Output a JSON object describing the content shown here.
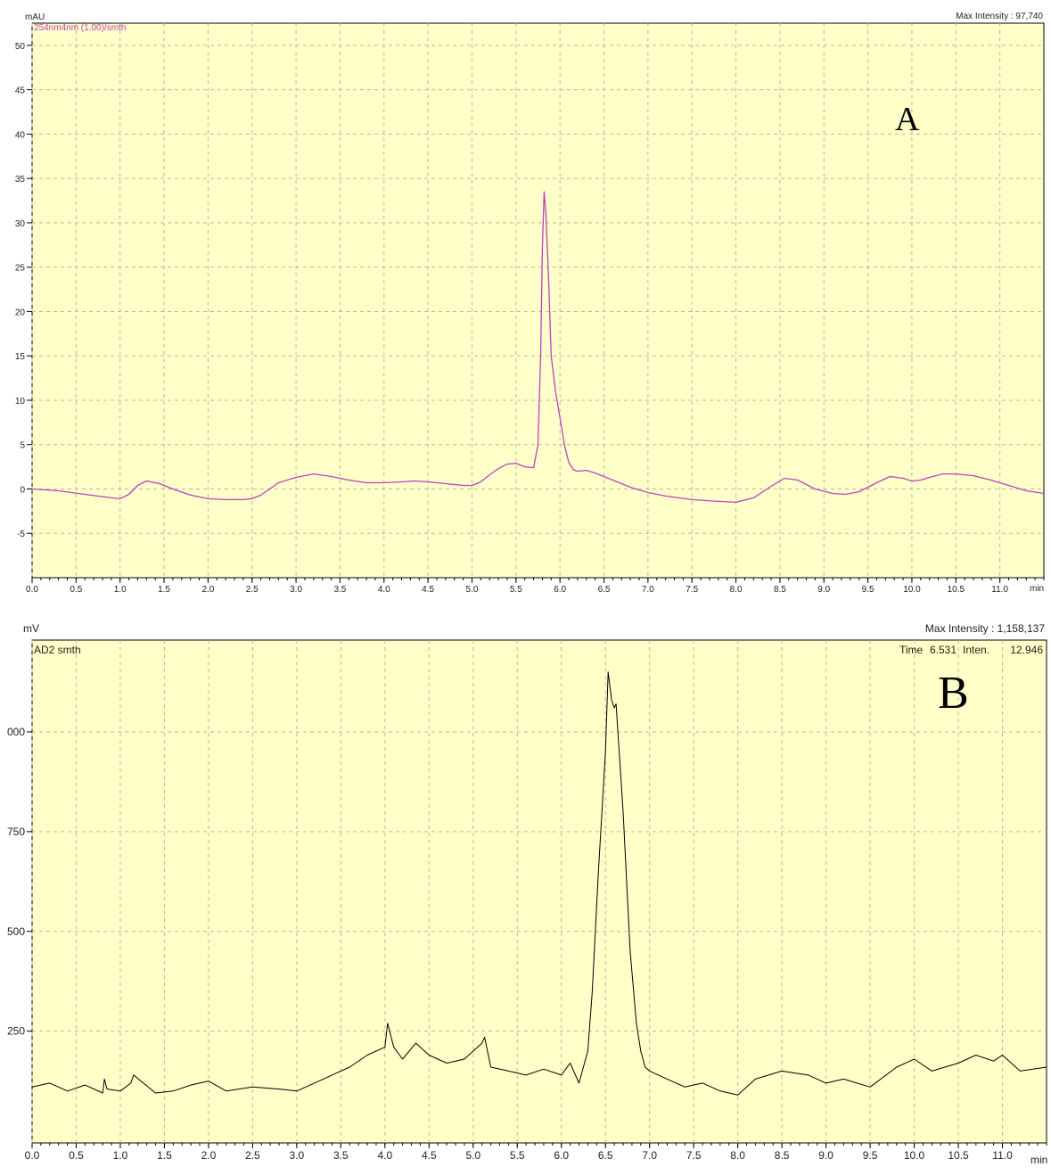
{
  "panel_a": {
    "unit_label": "mAU",
    "trace_label": "254nm4nm (1.00)/smth",
    "max_intensity": "Max Intensity : 97,740",
    "panel_letter": "A"
  },
  "panel_b": {
    "unit_label": "mV",
    "trace_label": "AD2 smth",
    "max_intensity": "Max Intensity : 1,158,137",
    "cursor_time_label": "Time",
    "cursor_time": "6.531",
    "cursor_inten_label": "Inten.",
    "cursor_inten": "12.946",
    "panel_letter": "B"
  },
  "colors": {
    "plot_background": "#ffffc8",
    "trace_a": "#c040c0",
    "trace_b": "#000000",
    "grid": "#b8b8a0"
  },
  "chart_data": [
    {
      "type": "line",
      "title": "",
      "xlabel": "min",
      "ylabel": "mAU",
      "xlim": [
        0.0,
        11.5
      ],
      "ylim": [
        -10,
        52.5
      ],
      "x_ticks": [
        "0.0",
        "0.5",
        "1.0",
        "1.5",
        "2.0",
        "2.5",
        "3.0",
        "3.5",
        "4.0",
        "4.5",
        "5.0",
        "5.5",
        "6.0",
        "6.5",
        "7.0",
        "7.5",
        "8.0",
        "8.5",
        "9.0",
        "9.5",
        "10.0",
        "10.5",
        "11.0"
      ],
      "y_ticks": [
        "-5",
        "0",
        "5",
        "10",
        "15",
        "20",
        "25",
        "30",
        "35",
        "40",
        "45",
        "50"
      ],
      "grid": true,
      "series": [
        {
          "name": "254nm4nm (1.00)/smth",
          "x": [
            0.0,
            0.3,
            0.6,
            0.9,
            1.0,
            1.1,
            1.2,
            1.3,
            1.45,
            1.6,
            1.8,
            2.0,
            2.2,
            2.4,
            2.5,
            2.6,
            2.7,
            2.8,
            3.0,
            3.2,
            3.4,
            3.6,
            3.8,
            4.0,
            4.2,
            4.35,
            4.5,
            4.7,
            4.9,
            5.0,
            5.1,
            5.2,
            5.3,
            5.4,
            5.5,
            5.6,
            5.7,
            5.75,
            5.78,
            5.8,
            5.82,
            5.84,
            5.87,
            5.9,
            5.95,
            6.0,
            6.05,
            6.1,
            6.15,
            6.2,
            6.3,
            6.4,
            6.6,
            6.8,
            7.0,
            7.2,
            7.5,
            7.8,
            8.0,
            8.2,
            8.4,
            8.55,
            8.7,
            8.9,
            9.1,
            9.25,
            9.4,
            9.6,
            9.75,
            9.9,
            10.0,
            10.1,
            10.2,
            10.35,
            10.5,
            10.7,
            10.9,
            11.1,
            11.3,
            11.5
          ],
          "y": [
            0.0,
            -0.2,
            -0.6,
            -1.0,
            -1.1,
            -0.6,
            0.4,
            0.9,
            0.6,
            0.0,
            -0.7,
            -1.1,
            -1.2,
            -1.2,
            -1.1,
            -0.7,
            0.0,
            0.7,
            1.3,
            1.7,
            1.4,
            1.0,
            0.7,
            0.7,
            0.8,
            0.9,
            0.8,
            0.6,
            0.4,
            0.4,
            0.8,
            1.6,
            2.3,
            2.8,
            2.9,
            2.5,
            2.4,
            5.0,
            15.0,
            27.0,
            33.5,
            31.0,
            24.0,
            15.0,
            11.0,
            8.0,
            5.0,
            3.0,
            2.2,
            2.0,
            2.1,
            1.8,
            1.0,
            0.2,
            -0.4,
            -0.8,
            -1.2,
            -1.4,
            -1.5,
            -1.0,
            0.3,
            1.2,
            1.0,
            0.0,
            -0.5,
            -0.6,
            -0.3,
            0.7,
            1.4,
            1.2,
            0.9,
            1.0,
            1.3,
            1.7,
            1.7,
            1.5,
            1.0,
            0.4,
            -0.2,
            -0.5
          ]
        }
      ]
    },
    {
      "type": "line",
      "title": "",
      "xlabel": "min",
      "ylabel": "mV",
      "xlim": [
        0.0,
        11.5
      ],
      "ylim": [
        -30,
        1230
      ],
      "x_ticks": [
        "0.0",
        "0.5",
        "1.0",
        "1.5",
        "2.0",
        "2.5",
        "3.0",
        "3.5",
        "4.0",
        "4.5",
        "5.0",
        "5.5",
        "6.0",
        "6.5",
        "7.0",
        "7.5",
        "8.0",
        "8.5",
        "9.0",
        "9.5",
        "10.0",
        "10.5",
        "11.0"
      ],
      "y_ticks": [
        "250",
        "500",
        "750",
        "000"
      ],
      "grid": true,
      "series": [
        {
          "name": "AD2 smth",
          "x": [
            0.0,
            0.2,
            0.4,
            0.6,
            0.8,
            0.82,
            0.85,
            1.0,
            1.12,
            1.15,
            1.4,
            1.6,
            1.8,
            2.0,
            2.2,
            2.5,
            2.8,
            3.0,
            3.2,
            3.4,
            3.6,
            3.8,
            4.0,
            4.03,
            4.1,
            4.2,
            4.35,
            4.5,
            4.7,
            4.9,
            5.1,
            5.13,
            5.2,
            5.4,
            5.6,
            5.8,
            6.0,
            6.1,
            6.2,
            6.3,
            6.35,
            6.42,
            6.5,
            6.53,
            6.57,
            6.6,
            6.62,
            6.7,
            6.78,
            6.85,
            6.9,
            6.95,
            7.0,
            7.2,
            7.4,
            7.6,
            7.8,
            8.0,
            8.2,
            8.5,
            8.8,
            9.0,
            9.2,
            9.5,
            9.8,
            10.0,
            10.2,
            10.5,
            10.7,
            10.9,
            11.0,
            11.2,
            11.5
          ],
          "y": [
            110,
            120,
            100,
            115,
            95,
            130,
            105,
            100,
            120,
            140,
            95,
            100,
            115,
            125,
            100,
            110,
            105,
            100,
            120,
            140,
            160,
            190,
            210,
            270,
            210,
            180,
            220,
            190,
            170,
            180,
            220,
            235,
            160,
            150,
            140,
            155,
            140,
            170,
            120,
            200,
            350,
            650,
            950,
            1150,
            1080,
            1060,
            1070,
            800,
            450,
            270,
            200,
            160,
            150,
            130,
            110,
            120,
            100,
            90,
            130,
            150,
            140,
            120,
            130,
            110,
            160,
            180,
            150,
            170,
            190,
            175,
            190,
            150,
            160
          ]
        }
      ]
    }
  ]
}
